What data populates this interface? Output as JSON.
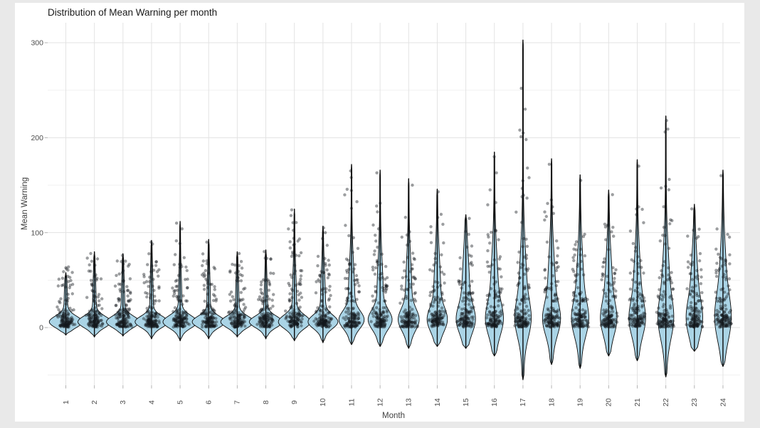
{
  "chart_data": {
    "type": "violin",
    "overlay": "jitter-points",
    "title": "Distribution of Mean Warning per month",
    "xlabel": "Month",
    "ylabel": "Mean Warning",
    "categories": [
      "1",
      "2",
      "3",
      "4",
      "5",
      "6",
      "7",
      "8",
      "9",
      "10",
      "11",
      "12",
      "13",
      "14",
      "15",
      "16",
      "17",
      "18",
      "19",
      "20",
      "21",
      "22",
      "23",
      "24"
    ],
    "y_axis": {
      "ticks": [
        0,
        100,
        200,
        300
      ],
      "minor_ticks": [
        -50,
        50,
        150,
        250
      ],
      "range": [
        -61,
        321
      ]
    },
    "legend": "none",
    "grid": "major-and-minor-horizontal, major-vertical-per-category",
    "colors": {
      "page_bg": "#e9e9e9",
      "panel_bg": "#ffffff",
      "grid_major": "#e3e3e3",
      "grid_minor": "#f1f1f1",
      "violin_fill": "#aad4e6",
      "violin_stroke": "#0a0a0a",
      "stem_stroke": "#0a0a0a",
      "point": "#14181c",
      "axis_text": "#4d4d4d",
      "title_text": "#1a1a1a",
      "tick_mark": "#b3b3b3"
    },
    "months": [
      {
        "label": "1",
        "max": 58,
        "min": -8,
        "violin": [
          21,
          6,
          6,
          2,
          20,
          25
        ],
        "counts": [
          110,
          20,
          2
        ],
        "hi_max": 50,
        "extremes": [
          45,
          52
        ]
      },
      {
        "label": "2",
        "max": 80,
        "min": -10,
        "violin": [
          21,
          6,
          6,
          2,
          22,
          28
        ],
        "counts": [
          110,
          24,
          5
        ],
        "hi_max": 75,
        "extremes": [
          78
        ]
      },
      {
        "label": "3",
        "max": 78,
        "min": -9,
        "violin": [
          21,
          6,
          6,
          2,
          22,
          28
        ],
        "counts": [
          110,
          24,
          5
        ],
        "hi_max": 72,
        "extremes": [
          76
        ]
      },
      {
        "label": "4",
        "max": 92,
        "min": -12,
        "violin": [
          21,
          6,
          6,
          2,
          24,
          30
        ],
        "counts": [
          112,
          26,
          6
        ],
        "hi_max": 85,
        "extremes": [
          88,
          90
        ]
      },
      {
        "label": "5",
        "max": 112,
        "min": -14,
        "violin": [
          22,
          6,
          6.5,
          2,
          24,
          30
        ],
        "counts": [
          112,
          26,
          7
        ],
        "hi_max": 98,
        "extremes": [
          104,
          110
        ]
      },
      {
        "label": "6",
        "max": 93,
        "min": -12,
        "violin": [
          21,
          6,
          6,
          2,
          24,
          30
        ],
        "counts": [
          110,
          24,
          5
        ],
        "hi_max": 85,
        "extremes": [
          90
        ]
      },
      {
        "label": "7",
        "max": 80,
        "min": -10,
        "violin": [
          21,
          6,
          6,
          2,
          22,
          28
        ],
        "counts": [
          108,
          22,
          4
        ],
        "hi_max": 72,
        "extremes": [
          78
        ]
      },
      {
        "label": "8",
        "max": 82,
        "min": -12,
        "violin": [
          21,
          6,
          6,
          2,
          22,
          28
        ],
        "counts": [
          110,
          24,
          4
        ],
        "hi_max": 75,
        "extremes": [
          80
        ]
      },
      {
        "label": "9",
        "max": 125,
        "min": -14,
        "violin": [
          20,
          6,
          7,
          2.5,
          26,
          32
        ],
        "counts": [
          100,
          26,
          18
        ],
        "hi_max": 112,
        "extremes": [
          118,
          124
        ]
      },
      {
        "label": "10",
        "max": 107,
        "min": -16,
        "violin": [
          18,
          6,
          7,
          3,
          26,
          32
        ],
        "counts": [
          104,
          26,
          9
        ],
        "hi_max": 96,
        "extremes": [
          100,
          105
        ]
      },
      {
        "label": "11",
        "max": 172,
        "min": -18,
        "violin": [
          14,
          8,
          9,
          4,
          30,
          36
        ],
        "counts": [
          96,
          28,
          16
        ],
        "hi_max": 150,
        "extremes": [
          158,
          165
        ]
      },
      {
        "label": "12",
        "max": 166,
        "min": -20,
        "violin": [
          13,
          8,
          10,
          4,
          30,
          38
        ],
        "counts": [
          96,
          28,
          14
        ],
        "hi_max": 132,
        "extremes": [
          128,
          131,
          163
        ]
      },
      {
        "label": "13",
        "max": 157,
        "min": -22,
        "violin": [
          11,
          8,
          11,
          4,
          32,
          38
        ],
        "counts": [
          96,
          26,
          12
        ],
        "hi_max": 125,
        "extremes": [
          150
        ]
      },
      {
        "label": "14",
        "max": 146,
        "min": -20,
        "violin": [
          10,
          8,
          12,
          4.5,
          32,
          40
        ],
        "counts": [
          96,
          26,
          12
        ],
        "hi_max": 120,
        "extremes": [
          143
        ]
      },
      {
        "label": "15",
        "max": 119,
        "min": -22,
        "violin": [
          9,
          8,
          14,
          5,
          34,
          40
        ],
        "counts": [
          96,
          26,
          10
        ],
        "hi_max": 108,
        "extremes": [
          115
        ]
      },
      {
        "label": "16",
        "max": 185,
        "min": -30,
        "violin": [
          8,
          8,
          16,
          5,
          34,
          42
        ],
        "counts": [
          94,
          28,
          16
        ],
        "hi_max": 155,
        "extremes": [
          163,
          180
        ]
      },
      {
        "label": "17",
        "max": 303,
        "min": -55,
        "violin": [
          7,
          8,
          18,
          5,
          36,
          44
        ],
        "counts": [
          92,
          28,
          20
        ],
        "hi_max": 170,
        "extremes": [
          198,
          201,
          205,
          208,
          230,
          252
        ]
      },
      {
        "label": "18",
        "max": 178,
        "min": -39,
        "violin": [
          8,
          8,
          16,
          5,
          34,
          42
        ],
        "counts": [
          94,
          28,
          16
        ],
        "hi_max": 140,
        "extremes": [
          172
        ]
      },
      {
        "label": "19",
        "max": 161,
        "min": -43,
        "violin": [
          7.5,
          8,
          17,
          5,
          34,
          42
        ],
        "counts": [
          94,
          28,
          14
        ],
        "hi_max": 125,
        "extremes": [
          155
        ]
      },
      {
        "label": "20",
        "max": 145,
        "min": -30,
        "violin": [
          7,
          8,
          16,
          5,
          34,
          40
        ],
        "counts": [
          96,
          28,
          12
        ],
        "hi_max": 110,
        "extremes": [
          140
        ]
      },
      {
        "label": "21",
        "max": 177,
        "min": -35,
        "violin": [
          7,
          8,
          17,
          5,
          34,
          42
        ],
        "counts": [
          94,
          28,
          14
        ],
        "hi_max": 135,
        "extremes": [
          170
        ]
      },
      {
        "label": "22",
        "max": 223,
        "min": -52,
        "violin": [
          6.5,
          8,
          20,
          5,
          36,
          44
        ],
        "counts": [
          92,
          28,
          16
        ],
        "hi_max": 165,
        "extremes": [
          206,
          209,
          218
        ]
      },
      {
        "label": "23",
        "max": 130,
        "min": -25,
        "violin": [
          7,
          8,
          18,
          5,
          34,
          40
        ],
        "counts": [
          96,
          26,
          12
        ],
        "hi_max": 105,
        "extremes": [
          125
        ]
      },
      {
        "label": "24",
        "max": 166,
        "min": -41,
        "violin": [
          7,
          8,
          22,
          5,
          36,
          44
        ],
        "counts": [
          94,
          28,
          14
        ],
        "hi_max": 105,
        "extremes": [
          160
        ]
      }
    ]
  }
}
